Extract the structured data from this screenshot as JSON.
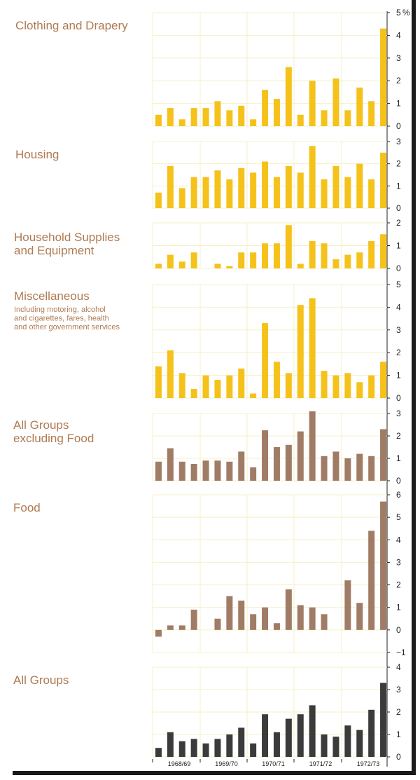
{
  "unit_label": "%",
  "colors": {
    "yellow": "#f5c21b",
    "brown": "#a07c66",
    "dark": "#3b3b3b",
    "grid": "#f4f0c4",
    "axis": "#222222",
    "title": "#b07a52"
  },
  "x_labels": [
    "1968/69",
    "1969/70",
    "1970/71",
    "1971/72",
    "1972/73"
  ],
  "chart_data": [
    {
      "type": "bar",
      "title": "Clothing and Drapery",
      "ylim": [
        0,
        5
      ],
      "yticks": [
        "0",
        "1",
        "2",
        "3",
        "4",
        "5"
      ],
      "grid": true,
      "color": "yellow",
      "series": [
        {
          "values": [
            0.5,
            0.8,
            0.3,
            0.8,
            0.8,
            1.1,
            0.7,
            0.9,
            0.3,
            1.6,
            1.2,
            2.6,
            0.5,
            2.0,
            0.7,
            2.1,
            0.7,
            1.7,
            1.1,
            4.3
          ]
        }
      ]
    },
    {
      "type": "bar",
      "title": "Housing",
      "ylim": [
        0,
        3
      ],
      "yticks": [
        "0",
        "1",
        "2",
        "3"
      ],
      "grid": true,
      "color": "yellow",
      "series": [
        {
          "values": [
            0.7,
            1.9,
            0.9,
            1.4,
            1.4,
            1.7,
            1.3,
            1.8,
            1.6,
            2.1,
            1.4,
            1.9,
            1.6,
            2.8,
            1.3,
            1.9,
            1.4,
            2.0,
            1.3,
            2.5
          ]
        }
      ]
    },
    {
      "type": "bar",
      "title": "Household Supplies\nand Equipment",
      "ylim": [
        0,
        2
      ],
      "yticks": [
        "0",
        "1",
        "2"
      ],
      "grid": true,
      "color": "yellow",
      "series": [
        {
          "values": [
            0.2,
            0.6,
            0.3,
            0.7,
            0.0,
            0.2,
            0.1,
            0.7,
            0.7,
            1.1,
            1.1,
            1.9,
            0.2,
            1.2,
            1.1,
            0.4,
            0.6,
            0.7,
            1.2,
            1.5
          ]
        }
      ]
    },
    {
      "type": "bar",
      "title": "Miscellaneous",
      "subtitle": "Including motoring, alcohol\nand cigarettes, fares, health\nand other government services",
      "ylim": [
        0,
        5
      ],
      "yticks": [
        "0",
        "1",
        "2",
        "3",
        "4",
        "5"
      ],
      "grid": true,
      "color": "yellow",
      "series": [
        {
          "values": [
            1.4,
            2.1,
            1.1,
            0.4,
            1.0,
            0.8,
            1.0,
            1.3,
            0.2,
            3.3,
            1.6,
            1.1,
            4.1,
            4.4,
            1.2,
            1.0,
            1.1,
            0.7,
            1.0,
            1.6
          ]
        }
      ]
    },
    {
      "type": "bar",
      "title": "All Groups\nexcluding Food",
      "ylim": [
        0,
        3
      ],
      "yticks": [
        "0",
        "1",
        "2",
        "3"
      ],
      "grid": true,
      "color": "brown",
      "series": [
        {
          "values": [
            0.85,
            1.45,
            0.85,
            0.75,
            0.9,
            0.9,
            0.85,
            1.3,
            0.6,
            2.25,
            1.5,
            1.6,
            2.2,
            3.1,
            1.1,
            1.3,
            1.0,
            1.2,
            1.1,
            2.3
          ]
        }
      ]
    },
    {
      "type": "bar",
      "title": "Food",
      "ylim": [
        -1,
        6
      ],
      "yticks": [
        "−1",
        "0",
        "1",
        "2",
        "3",
        "4",
        "5",
        "6"
      ],
      "grid": true,
      "color": "brown",
      "series": [
        {
          "values": [
            -0.3,
            0.2,
            0.2,
            0.9,
            0.0,
            0.5,
            1.5,
            1.3,
            0.7,
            1.0,
            0.3,
            1.8,
            1.1,
            1.0,
            0.7,
            0.0,
            2.2,
            1.2,
            4.4,
            5.7
          ]
        }
      ]
    },
    {
      "type": "bar",
      "title": "All Groups",
      "ylim": [
        0,
        4
      ],
      "yticks": [
        "0",
        "1",
        "2",
        "3",
        "4"
      ],
      "grid": true,
      "color": "dark",
      "series": [
        {
          "values": [
            0.4,
            1.1,
            0.7,
            0.8,
            0.6,
            0.8,
            1.0,
            1.3,
            0.6,
            1.9,
            1.1,
            1.7,
            1.9,
            2.3,
            1.0,
            0.9,
            1.4,
            1.2,
            2.1,
            3.3
          ]
        }
      ]
    }
  ]
}
